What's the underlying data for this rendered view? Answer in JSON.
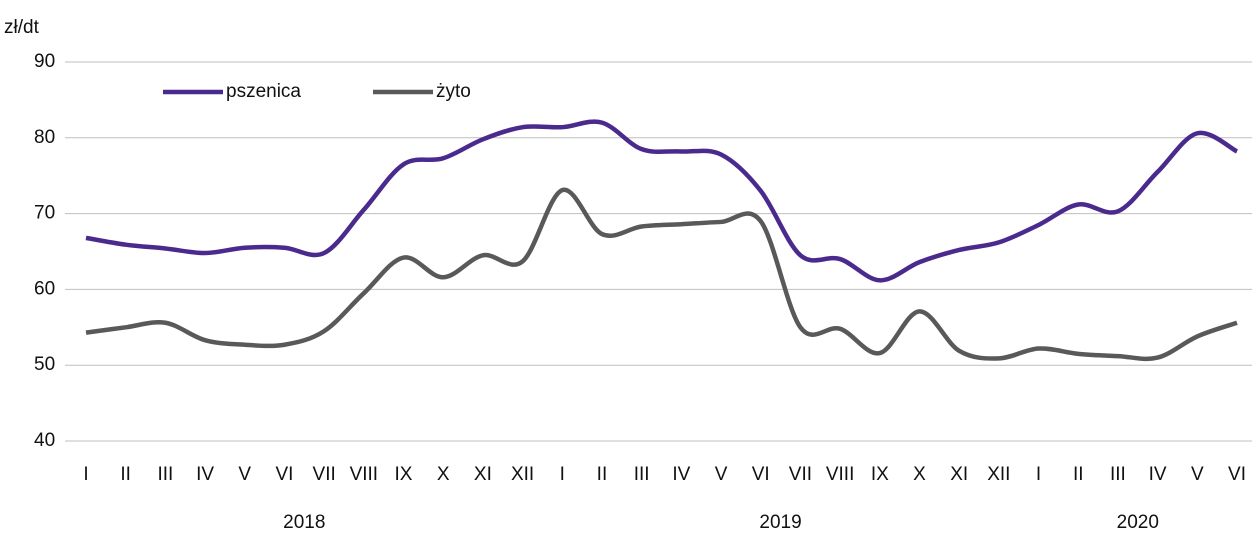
{
  "chart_data": {
    "type": "line",
    "y_label": "zł/dt",
    "categories": [
      "I",
      "II",
      "III",
      "IV",
      "V",
      "VI",
      "VII",
      "VIII",
      "IX",
      "X",
      "XI",
      "XII",
      "I",
      "II",
      "III",
      "IV",
      "V",
      "VI",
      "VII",
      "VIII",
      "IX",
      "X",
      "XI",
      "XII",
      "I",
      "II",
      "III",
      "IV",
      "V",
      "VI"
    ],
    "category_groups": [
      "2018",
      "2019",
      "2020"
    ],
    "series": [
      {
        "name": "pszenica",
        "color": "#4b2a8e",
        "values": [
          66.8,
          65.9,
          65.4,
          64.8,
          65.5,
          65.5,
          64.8,
          70.5,
          76.5,
          77.3,
          79.8,
          81.4,
          81.4,
          82.0,
          78.5,
          78.2,
          77.8,
          73.0,
          64.5,
          64.0,
          61.2,
          63.6,
          65.2,
          66.2,
          68.5,
          71.2,
          70.3,
          75.5,
          80.6,
          78.2
        ]
      },
      {
        "name": "żyto",
        "color": "#595959",
        "values": [
          54.3,
          55.0,
          55.6,
          53.3,
          52.7,
          52.7,
          54.5,
          59.5,
          64.2,
          61.6,
          64.5,
          63.7,
          73.1,
          67.3,
          68.3,
          68.6,
          68.9,
          69.0,
          55.0,
          54.8,
          51.6,
          57.1,
          51.9,
          50.9,
          52.2,
          51.5,
          51.2,
          51.0,
          53.8,
          55.6
        ]
      }
    ],
    "ylim": [
      40,
      90
    ],
    "yticks": [
      40,
      50,
      60,
      70,
      80,
      90
    ],
    "grid": true,
    "smooth": true,
    "legend": "top-left"
  }
}
